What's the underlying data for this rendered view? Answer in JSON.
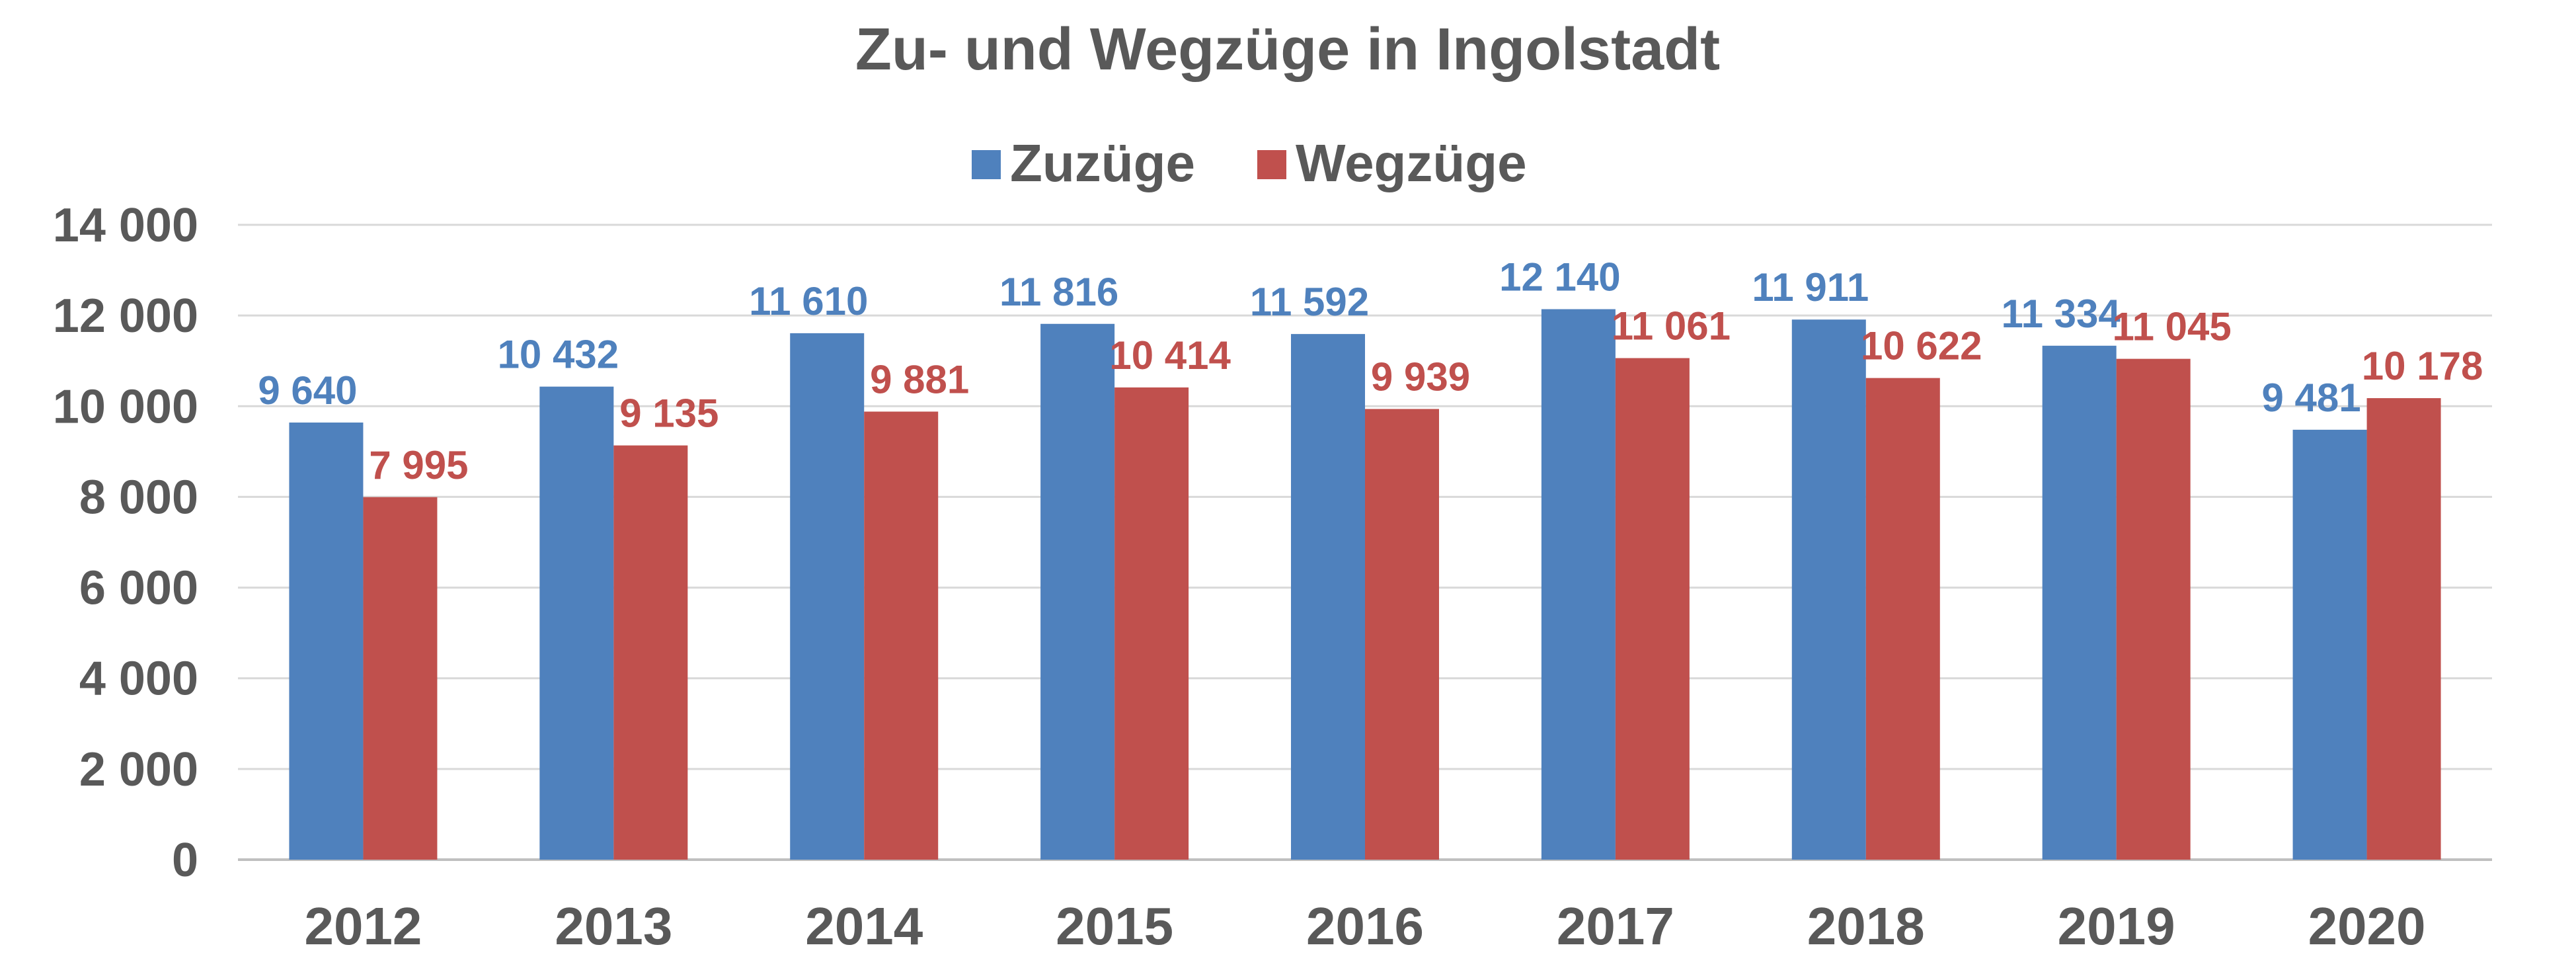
{
  "chart_data": {
    "type": "bar",
    "title": "Zu- und Wegzüge in Ingolstadt",
    "categories": [
      "2012",
      "2013",
      "2014",
      "2015",
      "2016",
      "2017",
      "2018",
      "2019",
      "2020"
    ],
    "series": [
      {
        "name": "Zuzüge",
        "color": "#4f81bd",
        "values": [
          9640,
          10432,
          11610,
          11816,
          11592,
          12140,
          11911,
          11334,
          9481
        ],
        "labels": [
          "9 640",
          "10 432",
          "11 610",
          "11 816",
          "11 592",
          "12 140",
          "11 911",
          "11 334",
          "9 481"
        ]
      },
      {
        "name": "Wegzüge",
        "color": "#c0504d",
        "values": [
          7995,
          9135,
          9881,
          10414,
          9939,
          11061,
          10622,
          11045,
          10178
        ],
        "labels": [
          "7 995",
          "9 135",
          "9 881",
          "10 414",
          "9 939",
          "11 061",
          "10 622",
          "11 045",
          "10 178"
        ]
      }
    ],
    "ylim": [
      0,
      14000
    ],
    "yticks": [
      0,
      2000,
      4000,
      6000,
      8000,
      10000,
      12000,
      14000
    ],
    "ytick_labels": [
      "0",
      "2 000",
      "4 000",
      "6 000",
      "8 000",
      "10 000",
      "12 000",
      "14 000"
    ],
    "grid": true,
    "legend": "top-center"
  }
}
